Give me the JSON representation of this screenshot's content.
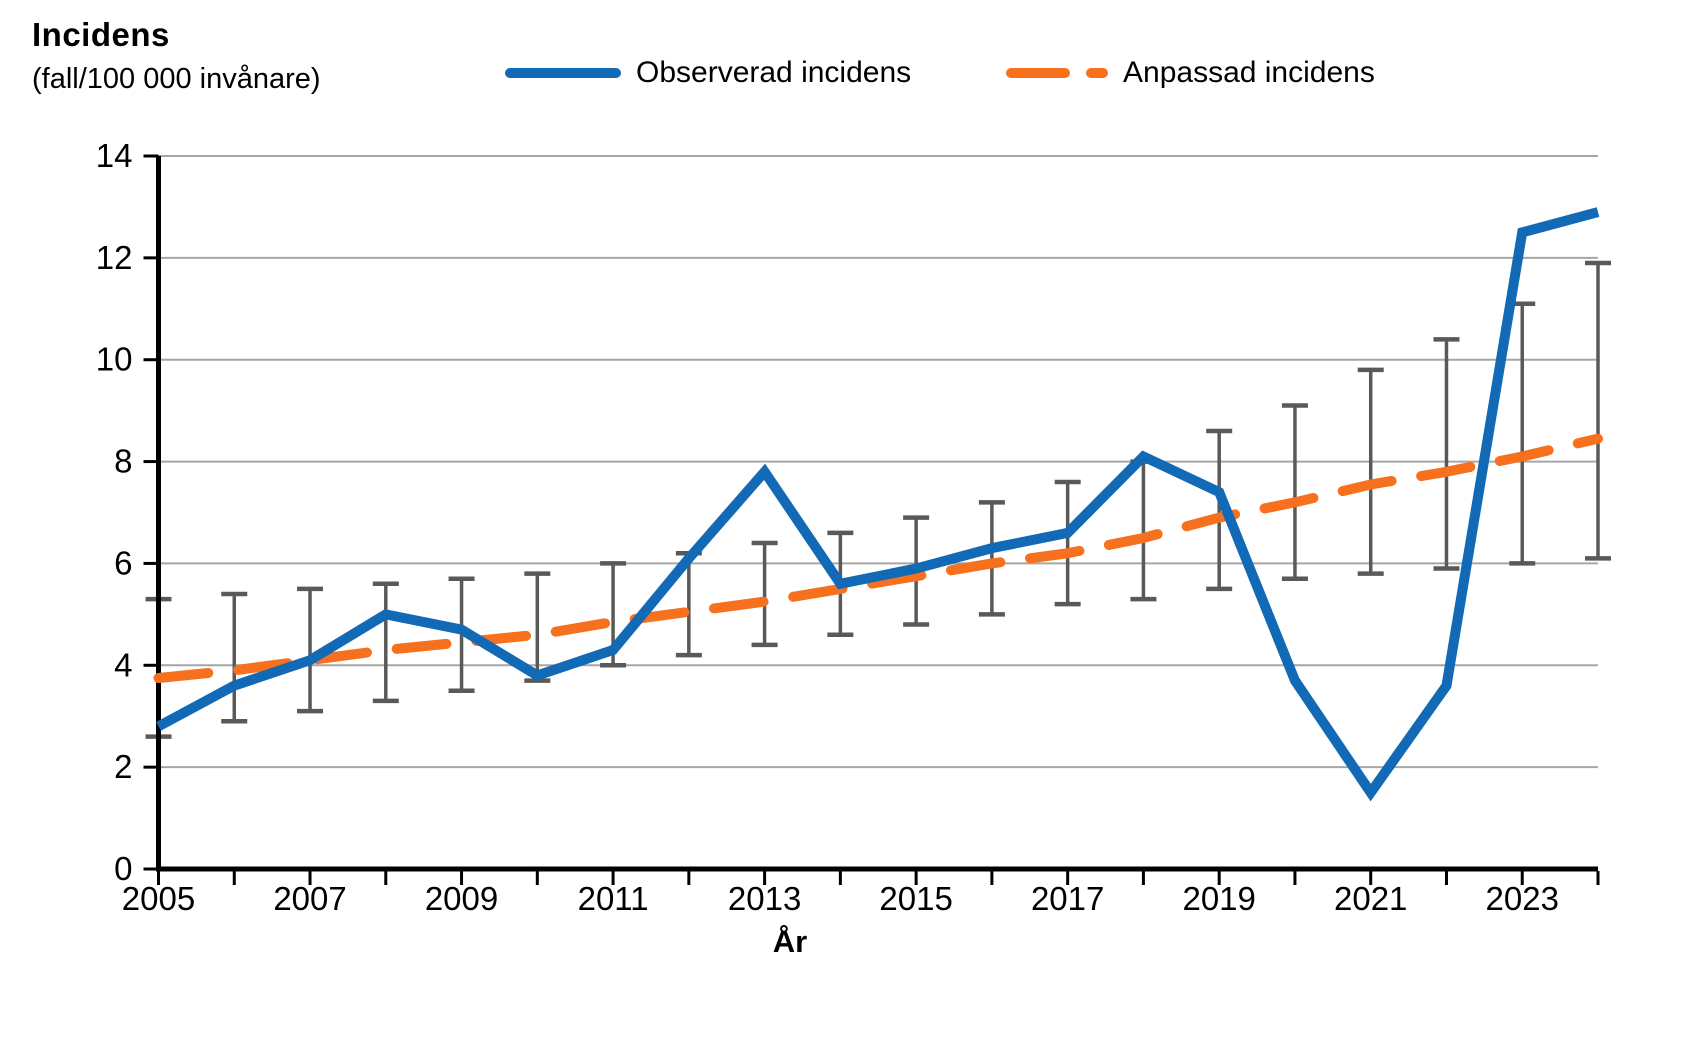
{
  "header": {
    "title": "Incidens",
    "subtitle": "(fall/100 000 invånare)"
  },
  "legend": {
    "observed_label": "Observerad incidens",
    "fitted_label": "Anpassad incidens"
  },
  "axis": {
    "x_title": "År"
  },
  "colors": {
    "observed": "#1269b5",
    "fitted": "#f7701d",
    "error_bar": "#595959",
    "gridline": "#a6a6a6",
    "axis": "#000000"
  },
  "chart_data": {
    "type": "line",
    "title": "Incidens (fall/100 000 invånare)",
    "xlabel": "År",
    "ylabel": "Incidens (fall/100 000 invånare)",
    "ylim": [
      0,
      14
    ],
    "ytick_values": [
      0,
      2,
      4,
      6,
      8,
      10,
      12,
      14
    ],
    "x": [
      2005,
      2006,
      2007,
      2008,
      2009,
      2010,
      2011,
      2012,
      2013,
      2014,
      2015,
      2016,
      2017,
      2018,
      2019,
      2020,
      2021,
      2022,
      2023,
      2024
    ],
    "xtick_labels": [
      "2005",
      "2007",
      "2009",
      "2011",
      "2013",
      "2015",
      "2017",
      "2019",
      "2021",
      "2023"
    ],
    "grid": true,
    "legend_position": "top",
    "series": [
      {
        "name": "Observerad incidens",
        "color": "#1269b5",
        "dashed": false,
        "values": [
          2.8,
          3.6,
          4.1,
          5.0,
          4.7,
          3.8,
          4.3,
          6.1,
          7.8,
          5.6,
          5.9,
          6.3,
          6.6,
          8.1,
          7.4,
          3.7,
          1.5,
          3.6,
          12.5,
          12.9
        ]
      },
      {
        "name": "Anpassad incidens",
        "color": "#f7701d",
        "dashed": true,
        "values": [
          3.75,
          3.9,
          4.1,
          4.3,
          4.45,
          4.6,
          4.85,
          5.05,
          5.25,
          5.5,
          5.75,
          6.0,
          6.2,
          6.5,
          6.9,
          7.2,
          7.55,
          7.8,
          8.1,
          8.45
        ]
      }
    ],
    "error_bars": {
      "attached_to": "Anpassad incidens",
      "color": "#595959",
      "lower": [
        2.6,
        2.9,
        3.1,
        3.3,
        3.5,
        3.7,
        4.0,
        4.2,
        4.4,
        4.6,
        4.8,
        5.0,
        5.2,
        5.3,
        5.5,
        5.7,
        5.8,
        5.9,
        6.0,
        6.1
      ],
      "upper": [
        5.3,
        5.4,
        5.5,
        5.6,
        5.7,
        5.8,
        6.0,
        6.2,
        6.4,
        6.6,
        6.9,
        7.2,
        7.6,
        8.0,
        8.6,
        9.1,
        9.8,
        10.4,
        11.1,
        11.9
      ]
    }
  }
}
